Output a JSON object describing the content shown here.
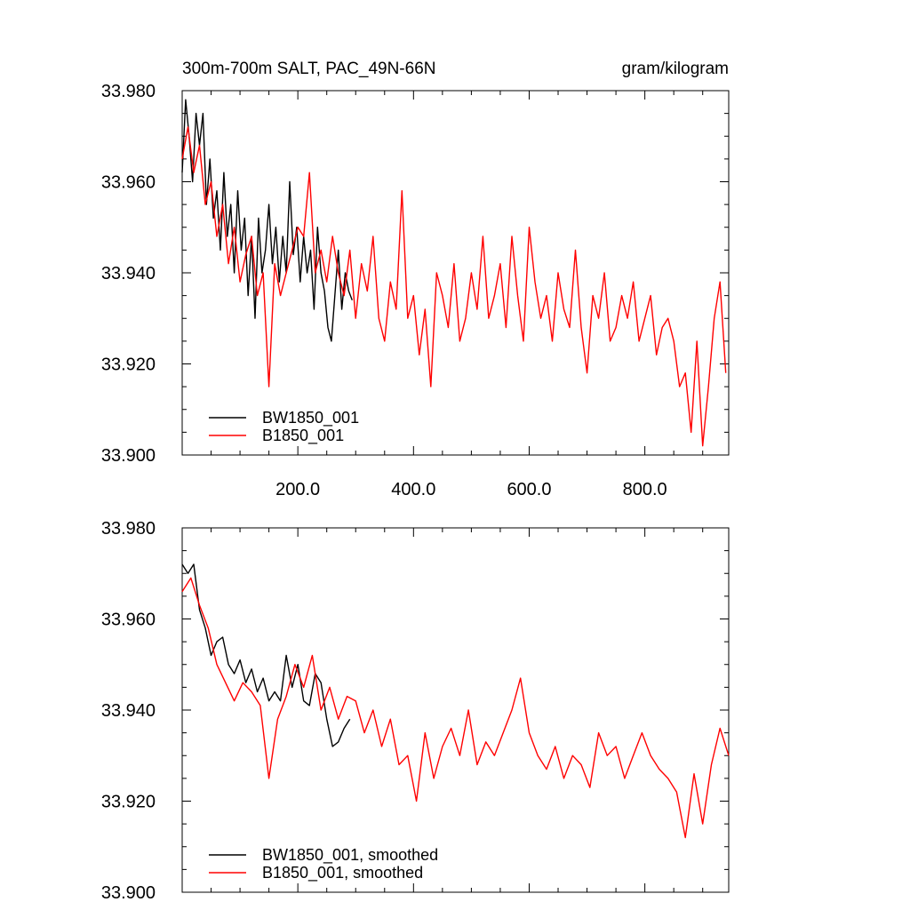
{
  "chart_data": [
    {
      "type": "line",
      "title": "300m-700m SALT, PAC_49N-66N",
      "units": "gram/kilogram",
      "xlim": [
        0,
        945
      ],
      "ylim": [
        33.9,
        33.98
      ],
      "x_ticks": [
        200,
        400,
        600,
        800
      ],
      "x_tick_labels": [
        "200.0",
        "400.0",
        "600.0",
        "800.0"
      ],
      "y_ticks": [
        33.9,
        33.92,
        33.94,
        33.96,
        33.98
      ],
      "y_tick_labels": [
        "33.900",
        "33.920",
        "33.940",
        "33.960",
        "33.980"
      ],
      "grid": false,
      "legend_position": "bottom-left",
      "series": [
        {
          "name": "BW1850_001",
          "color": "#000000",
          "x": [
            0,
            6,
            12,
            18,
            24,
            30,
            36,
            42,
            48,
            54,
            60,
            66,
            72,
            78,
            84,
            90,
            96,
            102,
            108,
            114,
            120,
            126,
            132,
            138,
            144,
            150,
            156,
            162,
            168,
            174,
            180,
            186,
            192,
            198,
            204,
            210,
            216,
            222,
            228,
            234,
            240,
            246,
            252,
            258,
            264,
            270,
            276,
            282,
            288,
            294
          ],
          "y": [
            33.962,
            33.978,
            33.97,
            33.96,
            33.975,
            33.968,
            33.975,
            33.955,
            33.965,
            33.952,
            33.958,
            33.945,
            33.962,
            33.948,
            33.955,
            33.94,
            33.958,
            33.945,
            33.952,
            33.935,
            33.948,
            33.93,
            33.952,
            33.94,
            33.945,
            33.955,
            33.942,
            33.95,
            33.938,
            33.948,
            33.94,
            33.96,
            33.944,
            33.95,
            33.938,
            33.948,
            33.94,
            33.945,
            33.932,
            33.95,
            33.94,
            33.936,
            33.928,
            33.925,
            33.935,
            33.945,
            33.932,
            33.94,
            33.936,
            33.934
          ]
        },
        {
          "name": "B1850_001",
          "color": "#ff0000",
          "x": [
            0,
            10,
            20,
            30,
            40,
            50,
            60,
            70,
            80,
            90,
            100,
            110,
            120,
            130,
            140,
            150,
            160,
            170,
            180,
            190,
            200,
            210,
            220,
            230,
            240,
            250,
            260,
            270,
            280,
            290,
            300,
            310,
            320,
            330,
            340,
            350,
            360,
            370,
            380,
            390,
            400,
            410,
            420,
            430,
            440,
            450,
            460,
            470,
            480,
            490,
            500,
            510,
            520,
            530,
            540,
            550,
            560,
            570,
            580,
            590,
            600,
            610,
            620,
            630,
            640,
            650,
            660,
            670,
            680,
            690,
            700,
            710,
            720,
            730,
            740,
            750,
            760,
            770,
            780,
            790,
            800,
            810,
            820,
            830,
            840,
            850,
            860,
            870,
            880,
            890,
            900,
            910,
            920,
            930,
            940
          ],
          "y": [
            33.965,
            33.972,
            33.962,
            33.968,
            33.955,
            33.96,
            33.948,
            33.955,
            33.942,
            33.95,
            33.938,
            33.944,
            33.948,
            33.935,
            33.94,
            33.915,
            33.942,
            33.935,
            33.94,
            33.945,
            33.95,
            33.948,
            33.962,
            33.94,
            33.945,
            33.938,
            33.948,
            33.94,
            33.935,
            33.945,
            33.93,
            33.942,
            33.936,
            33.948,
            33.93,
            33.925,
            33.938,
            33.932,
            33.958,
            33.93,
            33.935,
            33.922,
            33.932,
            33.915,
            33.94,
            33.935,
            33.928,
            33.942,
            33.925,
            33.93,
            33.94,
            33.932,
            33.948,
            33.93,
            33.935,
            33.942,
            33.928,
            33.948,
            33.935,
            33.925,
            33.95,
            33.938,
            33.93,
            33.935,
            33.925,
            33.94,
            33.932,
            33.928,
            33.945,
            33.928,
            33.918,
            33.935,
            33.93,
            33.94,
            33.925,
            33.928,
            33.935,
            33.93,
            33.938,
            33.925,
            33.93,
            33.935,
            33.922,
            33.928,
            33.93,
            33.925,
            33.915,
            33.918,
            33.905,
            33.925,
            33.902,
            33.915,
            33.93,
            33.938,
            33.918
          ]
        }
      ]
    },
    {
      "type": "line",
      "xlim": [
        0,
        945
      ],
      "ylim": [
        33.9,
        33.98
      ],
      "y_ticks": [
        33.9,
        33.92,
        33.94,
        33.96,
        33.98
      ],
      "y_tick_labels": [
        "33.900",
        "33.920",
        "33.940",
        "33.960",
        "33.980"
      ],
      "grid": false,
      "legend_position": "bottom-left",
      "series": [
        {
          "name": "BW1850_001, smoothed",
          "color": "#000000",
          "x": [
            0,
            10,
            20,
            30,
            40,
            50,
            60,
            70,
            80,
            90,
            100,
            110,
            120,
            130,
            140,
            150,
            160,
            170,
            180,
            190,
            200,
            210,
            220,
            230,
            240,
            250,
            260,
            270,
            280,
            290
          ],
          "y": [
            33.972,
            33.97,
            33.972,
            33.962,
            33.958,
            33.952,
            33.955,
            33.956,
            33.95,
            33.948,
            33.951,
            33.946,
            33.949,
            33.944,
            33.947,
            33.942,
            33.944,
            33.942,
            33.952,
            33.945,
            33.95,
            33.942,
            33.941,
            33.948,
            33.946,
            33.938,
            33.932,
            33.933,
            33.936,
            33.938
          ]
        },
        {
          "name": "B1850_001, smoothed",
          "color": "#ff0000",
          "x": [
            0,
            15,
            30,
            45,
            60,
            75,
            90,
            105,
            120,
            135,
            150,
            165,
            180,
            195,
            210,
            225,
            240,
            255,
            270,
            285,
            300,
            315,
            330,
            345,
            360,
            375,
            390,
            405,
            420,
            435,
            450,
            465,
            480,
            495,
            510,
            525,
            540,
            555,
            570,
            585,
            600,
            615,
            630,
            645,
            660,
            675,
            690,
            705,
            720,
            735,
            750,
            765,
            780,
            795,
            810,
            825,
            840,
            855,
            870,
            885,
            900,
            915,
            930,
            945
          ],
          "y": [
            33.966,
            33.969,
            33.963,
            33.958,
            33.95,
            33.946,
            33.942,
            33.946,
            33.944,
            33.941,
            33.925,
            33.938,
            33.943,
            33.95,
            33.945,
            33.952,
            33.94,
            33.945,
            33.938,
            33.943,
            33.942,
            33.935,
            33.94,
            33.932,
            33.938,
            33.928,
            33.93,
            33.92,
            33.935,
            33.925,
            33.932,
            33.936,
            33.93,
            33.94,
            33.928,
            33.933,
            33.93,
            33.935,
            33.94,
            33.947,
            33.935,
            33.93,
            33.927,
            33.932,
            33.925,
            33.93,
            33.928,
            33.923,
            33.935,
            33.93,
            33.932,
            33.925,
            33.93,
            33.935,
            33.93,
            33.927,
            33.925,
            33.922,
            33.912,
            33.926,
            33.915,
            33.928,
            33.936,
            33.93
          ]
        }
      ]
    }
  ]
}
